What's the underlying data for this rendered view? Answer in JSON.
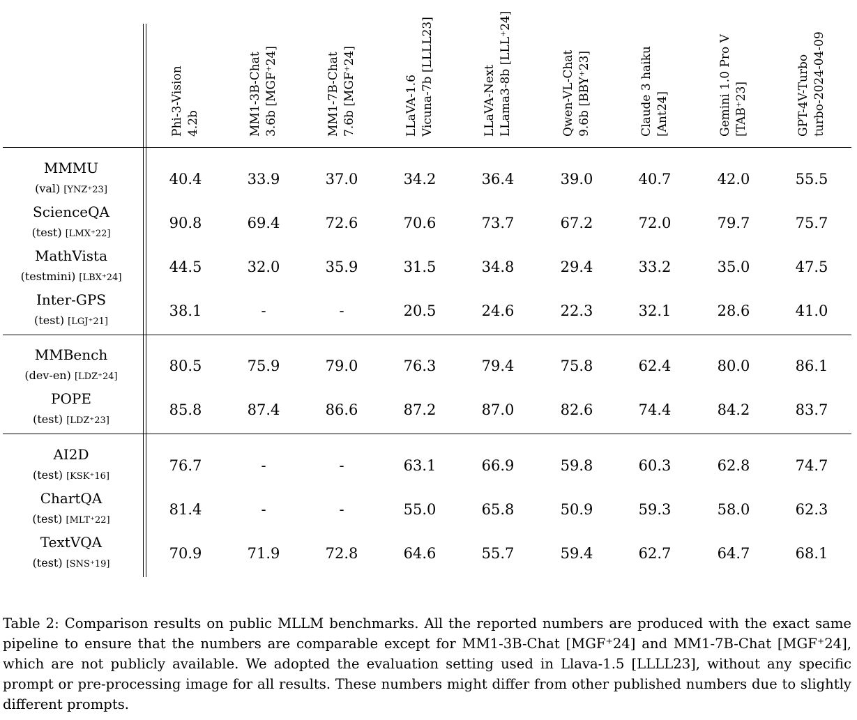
{
  "columns": [
    {
      "line1": "Phi-3-Vision",
      "line2": "4.2b"
    },
    {
      "line1": "MM1-3B-Chat",
      "line2": "3.6b [MGF⁺24]"
    },
    {
      "line1": "MM1-7B-Chat",
      "line2": "7.6b [MGF⁺24]"
    },
    {
      "line1": "LLaVA-1.6",
      "line2": "Vicuna-7b [LLLL23]"
    },
    {
      "line1": "LLaVA-Next",
      "line2": "LLama3-8b [LLL⁺24]"
    },
    {
      "line1": "Qwen-VL-Chat",
      "line2": "9.6b [BBY⁺23]"
    },
    {
      "line1": "Claude 3 haiku",
      "line2": "[Ant24]"
    },
    {
      "line1": "Gemini 1.0 Pro V",
      "line2": "[TAB⁺23]"
    },
    {
      "line1": "GPT-4V-Turbo",
      "line2": "turbo-2024-04-09"
    }
  ],
  "rows": [
    {
      "name": "MMMU",
      "split": "(val)",
      "cite": "[YNZ⁺23]",
      "values": [
        "40.4",
        "33.9",
        "37.0",
        "34.2",
        "36.4",
        "39.0",
        "40.7",
        "42.0",
        "55.5"
      ]
    },
    {
      "name": "ScienceQA",
      "split": "(test)",
      "cite": "[LMX⁺22]",
      "values": [
        "90.8",
        "69.4",
        "72.6",
        "70.6",
        "73.7",
        "67.2",
        "72.0",
        "79.7",
        "75.7"
      ]
    },
    {
      "name": "MathVista",
      "split": "(testmini)",
      "cite": "[LBX⁺24]",
      "values": [
        "44.5",
        "32.0",
        "35.9",
        "31.5",
        "34.8",
        "29.4",
        "33.2",
        "35.0",
        "47.5"
      ]
    },
    {
      "name": "Inter-GPS",
      "split": "(test)",
      "cite": "[LGJ⁺21]",
      "values": [
        "38.1",
        "-",
        "-",
        "20.5",
        "24.6",
        "22.3",
        "32.1",
        "28.6",
        "41.0"
      ]
    },
    {
      "name": "MMBench",
      "split": "(dev-en)",
      "cite": "[LDZ⁺24]",
      "values": [
        "80.5",
        "75.9",
        "79.0",
        "76.3",
        "79.4",
        "75.8",
        "62.4",
        "80.0",
        "86.1"
      ]
    },
    {
      "name": "POPE",
      "split": "(test)",
      "cite": "[LDZ⁺23]",
      "values": [
        "85.8",
        "87.4",
        "86.6",
        "87.2",
        "87.0",
        "82.6",
        "74.4",
        "84.2",
        "83.7"
      ]
    },
    {
      "name": "AI2D",
      "split": "(test)",
      "cite": "[KSK⁺16]",
      "values": [
        "76.7",
        "-",
        "-",
        "63.1",
        "66.9",
        "59.8",
        "60.3",
        "62.8",
        "74.7"
      ]
    },
    {
      "name": "ChartQA",
      "split": "(test)",
      "cite": "[MLT⁺22]",
      "values": [
        "81.4",
        "-",
        "-",
        "55.0",
        "65.8",
        "50.9",
        "59.3",
        "58.0",
        "62.3"
      ]
    },
    {
      "name": "TextVQA",
      "split": "(test)",
      "cite": "[SNS⁺19]",
      "values": [
        "70.9",
        "71.9",
        "72.8",
        "64.6",
        "55.7",
        "59.4",
        "62.7",
        "64.7",
        "68.1"
      ]
    }
  ],
  "caption": "Table 2: Comparison results on public MLLM benchmarks. All the reported numbers are produced with the exact same pipeline to ensure that the numbers are comparable except for MM1-3B-Chat [MGF⁺24] and MM1-7B-Chat [MGF⁺24], which are not publicly available. We adopted the evaluation setting used in Llava-1.5 [LLLL23], without any specific prompt or pre-processing image for all results. These numbers might differ from other published numbers due to slightly different prompts."
}
